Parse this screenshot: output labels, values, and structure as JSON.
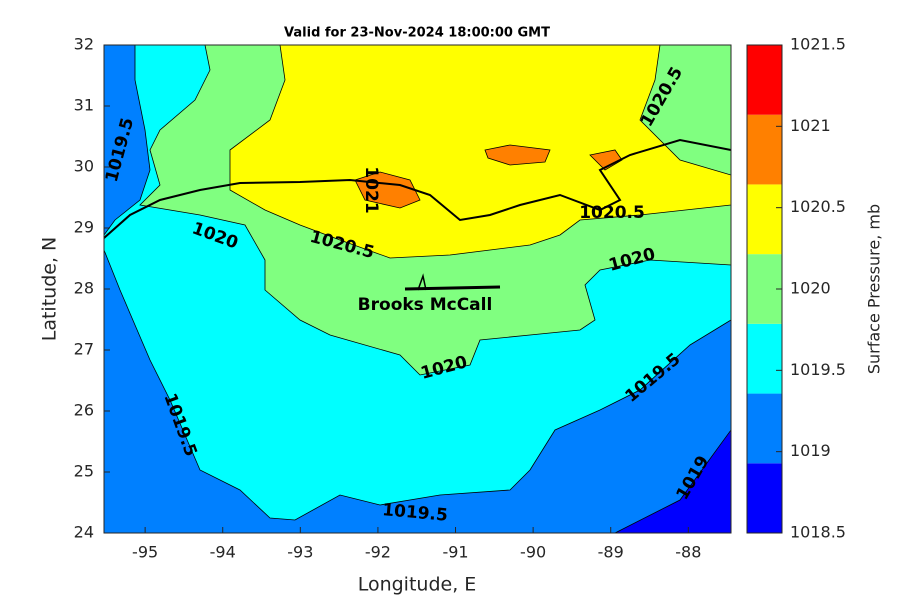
{
  "chart_data": {
    "type": "contour",
    "title": "Valid for 23-Nov-2024 18:00:00 GMT",
    "x_label": "Longitude, E",
    "y_label": "Latitude, N",
    "xlim": [
      -95.53,
      -87.45
    ],
    "ylim": [
      24,
      32
    ],
    "xticks": [
      -95,
      -94,
      -93,
      -92,
      -91,
      -90,
      -89,
      -88
    ],
    "yticks": [
      24,
      25,
      26,
      27,
      28,
      29,
      30,
      31,
      32
    ],
    "colorbar": {
      "label": "Surface Pressure, mb",
      "clim": [
        1018.5,
        1021.5
      ],
      "ticks": [
        1018.5,
        1019,
        1019.5,
        1020,
        1020.5,
        1021,
        1021.5
      ],
      "colors": [
        "#0000ff",
        "#0080ff",
        "#00ffff",
        "#80ff80",
        "#ffff00",
        "#ff8000",
        "#ff0000"
      ]
    },
    "contour_labels": [
      "1020.5",
      "1019.5",
      "1021",
      "1020.5",
      "1020",
      "1020.5",
      "1020",
      "1020",
      "1019.5",
      "1019.5",
      "1019.5",
      "1019"
    ],
    "site_label": "Brooks McCall"
  }
}
